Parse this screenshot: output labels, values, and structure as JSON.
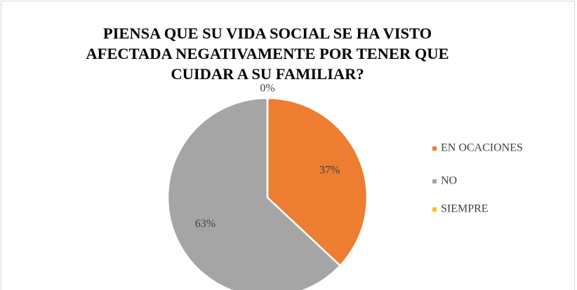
{
  "chart_data": {
    "type": "pie",
    "title": "PIENSA QUE SU VIDA SOCIAL SE HA VISTO AFECTADA NEGATIVAMENTE POR TENER QUE CUIDAR A SU FAMILIAR?",
    "categories": [
      "EN OCACIONES",
      "NO",
      "SIEMPRE"
    ],
    "values": [
      37,
      63,
      0
    ],
    "value_labels": [
      "37%",
      "63%",
      "0%"
    ],
    "colors": [
      "#ED7D31",
      "#A5A5A5",
      "#FFC000"
    ],
    "legend": "right"
  }
}
